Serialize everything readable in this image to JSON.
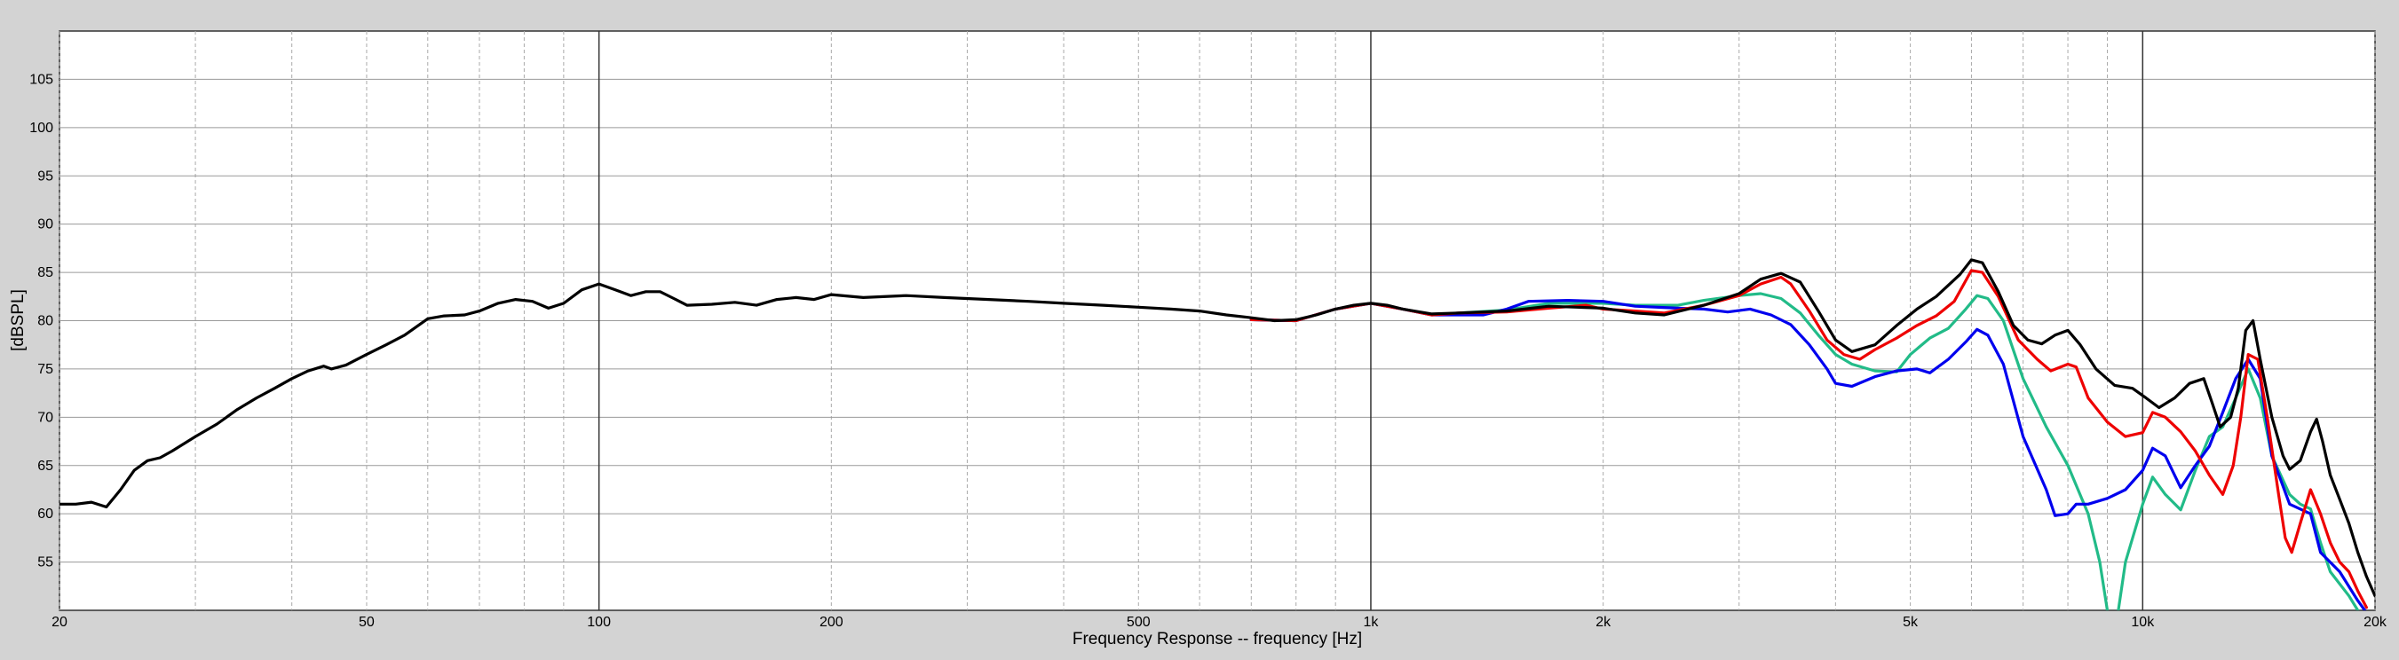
{
  "chart_data": {
    "type": "line",
    "title": "",
    "xlabel": "Frequency Response -- frequency [Hz]",
    "ylabel": "[dBSPL]",
    "x_scale": "log",
    "xlim": [
      20,
      20000
    ],
    "ylim": [
      50,
      110
    ],
    "grid": true,
    "legend": "none",
    "x_ticks": [
      {
        "value": 20,
        "label": "20"
      },
      {
        "value": 50,
        "label": "50"
      },
      {
        "value": 100,
        "label": "100"
      },
      {
        "value": 200,
        "label": "200"
      },
      {
        "value": 500,
        "label": "500"
      },
      {
        "value": 1000,
        "label": "1k"
      },
      {
        "value": 2000,
        "label": "2k"
      },
      {
        "value": 5000,
        "label": "5k"
      },
      {
        "value": 10000,
        "label": "10k"
      },
      {
        "value": 20000,
        "label": "20k"
      }
    ],
    "y_ticks": [
      {
        "value": 55,
        "label": "55"
      },
      {
        "value": 60,
        "label": "60"
      },
      {
        "value": 65,
        "label": "65"
      },
      {
        "value": 70,
        "label": "70"
      },
      {
        "value": 75,
        "label": "75"
      },
      {
        "value": 80,
        "label": "80"
      },
      {
        "value": 85,
        "label": "85"
      },
      {
        "value": 90,
        "label": "90"
      },
      {
        "value": 95,
        "label": "95"
      },
      {
        "value": 100,
        "label": "100"
      },
      {
        "value": 105,
        "label": "105"
      }
    ],
    "series": [
      {
        "color": "#22bb88",
        "points": [
          [
            700,
            80.1
          ],
          [
            800,
            80.0
          ],
          [
            900,
            81.2
          ],
          [
            1000,
            81.8
          ],
          [
            1100,
            81.2
          ],
          [
            1200,
            80.6
          ],
          [
            1300,
            80.8
          ],
          [
            1500,
            81.1
          ],
          [
            1700,
            81.8
          ],
          [
            2000,
            81.8
          ],
          [
            2200,
            81.6
          ],
          [
            2500,
            81.6
          ],
          [
            2700,
            82.1
          ],
          [
            3000,
            82.6
          ],
          [
            3200,
            82.8
          ],
          [
            3400,
            82.3
          ],
          [
            3600,
            80.8
          ],
          [
            3800,
            78.5
          ],
          [
            4000,
            76.5
          ],
          [
            4200,
            75.5
          ],
          [
            4500,
            74.8
          ],
          [
            4800,
            74.7
          ],
          [
            5000,
            76.5
          ],
          [
            5300,
            78.2
          ],
          [
            5600,
            79.2
          ],
          [
            5900,
            81.2
          ],
          [
            6100,
            82.6
          ],
          [
            6300,
            82.3
          ],
          [
            6600,
            80.0
          ],
          [
            7000,
            74.0
          ],
          [
            7500,
            69.0
          ],
          [
            8000,
            65.0
          ],
          [
            8500,
            60.0
          ],
          [
            8800,
            55.0
          ],
          [
            9000,
            50.0
          ]
        ]
      },
      {
        "color": "#22bb88",
        "points": [
          [
            9300,
            50.0
          ],
          [
            9500,
            55.0
          ],
          [
            10000,
            61.0
          ],
          [
            10300,
            63.8
          ],
          [
            10700,
            62.0
          ],
          [
            11200,
            60.4
          ],
          [
            11700,
            64.5
          ],
          [
            12200,
            68.0
          ],
          [
            12700,
            69.0
          ],
          [
            13200,
            72.0
          ],
          [
            13700,
            75.0
          ],
          [
            14200,
            72.0
          ],
          [
            14700,
            66.0
          ],
          [
            15500,
            62.0
          ],
          [
            16000,
            61.0
          ],
          [
            16500,
            60.5
          ],
          [
            17000,
            57.0
          ],
          [
            17500,
            54.0
          ],
          [
            18500,
            51.5
          ],
          [
            19000,
            50.0
          ]
        ]
      },
      {
        "color": "#0000ee",
        "points": [
          [
            700,
            80.1
          ],
          [
            800,
            80.0
          ],
          [
            900,
            81.2
          ],
          [
            1000,
            81.8
          ],
          [
            1100,
            81.2
          ],
          [
            1200,
            80.6
          ],
          [
            1300,
            80.6
          ],
          [
            1400,
            80.6
          ],
          [
            1500,
            81.2
          ],
          [
            1600,
            82.0
          ],
          [
            1800,
            82.1
          ],
          [
            2000,
            82.0
          ],
          [
            2200,
            81.5
          ],
          [
            2500,
            81.3
          ],
          [
            2700,
            81.2
          ],
          [
            2900,
            80.9
          ],
          [
            3100,
            81.2
          ],
          [
            3300,
            80.6
          ],
          [
            3500,
            79.6
          ],
          [
            3700,
            77.5
          ],
          [
            3900,
            75.0
          ],
          [
            4000,
            73.5
          ],
          [
            4200,
            73.2
          ],
          [
            4500,
            74.2
          ],
          [
            4800,
            74.8
          ],
          [
            5100,
            75.0
          ],
          [
            5300,
            74.6
          ],
          [
            5600,
            76.0
          ],
          [
            5900,
            77.8
          ],
          [
            6100,
            79.1
          ],
          [
            6300,
            78.5
          ],
          [
            6600,
            75.5
          ],
          [
            7000,
            68.0
          ],
          [
            7500,
            62.5
          ],
          [
            7700,
            59.8
          ],
          [
            8000,
            60.0
          ],
          [
            8200,
            61.0
          ],
          [
            8500,
            61.0
          ],
          [
            9000,
            61.6
          ],
          [
            9500,
            62.5
          ],
          [
            10000,
            64.5
          ],
          [
            10300,
            66.8
          ],
          [
            10700,
            66.0
          ],
          [
            11200,
            62.7
          ],
          [
            11700,
            65.0
          ],
          [
            12200,
            67.0
          ],
          [
            12700,
            70.5
          ],
          [
            13200,
            74.0
          ],
          [
            13700,
            76.0
          ],
          [
            14200,
            74.0
          ],
          [
            14700,
            66.0
          ],
          [
            15500,
            61.0
          ],
          [
            16500,
            60.0
          ],
          [
            17000,
            56.0
          ],
          [
            18000,
            54.0
          ],
          [
            19000,
            51.0
          ],
          [
            19400,
            50.0
          ]
        ]
      },
      {
        "color": "#ee0000",
        "points": [
          [
            700,
            80.1
          ],
          [
            800,
            80.0
          ],
          [
            900,
            81.2
          ],
          [
            1000,
            81.8
          ],
          [
            1100,
            81.2
          ],
          [
            1200,
            80.6
          ],
          [
            1300,
            80.8
          ],
          [
            1500,
            80.9
          ],
          [
            1700,
            81.3
          ],
          [
            1900,
            81.6
          ],
          [
            2000,
            81.2
          ],
          [
            2200,
            81.0
          ],
          [
            2400,
            80.8
          ],
          [
            2700,
            81.6
          ],
          [
            3000,
            82.6
          ],
          [
            3200,
            83.8
          ],
          [
            3400,
            84.5
          ],
          [
            3500,
            83.8
          ],
          [
            3700,
            81.0
          ],
          [
            3900,
            78.0
          ],
          [
            4100,
            76.5
          ],
          [
            4300,
            76.0
          ],
          [
            4500,
            77.0
          ],
          [
            4800,
            78.2
          ],
          [
            5100,
            79.5
          ],
          [
            5400,
            80.5
          ],
          [
            5700,
            82.0
          ],
          [
            6000,
            85.2
          ],
          [
            6200,
            85.0
          ],
          [
            6500,
            82.5
          ],
          [
            6900,
            78.0
          ],
          [
            7300,
            76.0
          ],
          [
            7600,
            74.8
          ],
          [
            8000,
            75.5
          ],
          [
            8200,
            75.2
          ],
          [
            8500,
            72.0
          ],
          [
            9000,
            69.5
          ],
          [
            9500,
            68.0
          ],
          [
            10000,
            68.4
          ],
          [
            10300,
            70.5
          ],
          [
            10700,
            70.0
          ],
          [
            11200,
            68.5
          ],
          [
            11700,
            66.5
          ],
          [
            12200,
            64.0
          ],
          [
            12700,
            62.0
          ],
          [
            13100,
            65.0
          ],
          [
            13400,
            70.0
          ],
          [
            13700,
            76.5
          ],
          [
            14100,
            76.0
          ],
          [
            14500,
            70.0
          ],
          [
            15000,
            62.0
          ],
          [
            15300,
            57.5
          ],
          [
            15600,
            56.0
          ],
          [
            16000,
            59.0
          ],
          [
            16500,
            62.5
          ],
          [
            17000,
            60.0
          ],
          [
            17500,
            57.0
          ],
          [
            18000,
            55.0
          ],
          [
            18500,
            54.0
          ],
          [
            19000,
            52.0
          ],
          [
            19500,
            50.3
          ]
        ]
      },
      {
        "color": "#000000",
        "points": [
          [
            20,
            61.0
          ],
          [
            21,
            61.0
          ],
          [
            22,
            61.2
          ],
          [
            23,
            60.7
          ],
          [
            24,
            62.5
          ],
          [
            25,
            64.5
          ],
          [
            26,
            65.5
          ],
          [
            27,
            65.8
          ],
          [
            28,
            66.5
          ],
          [
            30,
            68.0
          ],
          [
            32,
            69.3
          ],
          [
            34,
            70.8
          ],
          [
            36,
            72.0
          ],
          [
            38,
            73.0
          ],
          [
            40,
            74.0
          ],
          [
            42,
            74.8
          ],
          [
            44,
            75.3
          ],
          [
            45,
            75.0
          ],
          [
            47,
            75.4
          ],
          [
            50,
            76.5
          ],
          [
            53,
            77.5
          ],
          [
            56,
            78.5
          ],
          [
            60,
            80.2
          ],
          [
            63,
            80.5
          ],
          [
            67,
            80.6
          ],
          [
            70,
            81.0
          ],
          [
            74,
            81.8
          ],
          [
            78,
            82.2
          ],
          [
            82,
            82.0
          ],
          [
            86,
            81.3
          ],
          [
            90,
            81.8
          ],
          [
            95,
            83.2
          ],
          [
            100,
            83.8
          ],
          [
            105,
            83.2
          ],
          [
            110,
            82.6
          ],
          [
            115,
            83.0
          ],
          [
            120,
            83.0
          ],
          [
            125,
            82.3
          ],
          [
            130,
            81.6
          ],
          [
            140,
            81.7
          ],
          [
            150,
            81.9
          ],
          [
            160,
            81.6
          ],
          [
            170,
            82.2
          ],
          [
            180,
            82.4
          ],
          [
            190,
            82.2
          ],
          [
            200,
            82.7
          ],
          [
            220,
            82.4
          ],
          [
            250,
            82.6
          ],
          [
            280,
            82.4
          ],
          [
            320,
            82.2
          ],
          [
            360,
            82.0
          ],
          [
            400,
            81.8
          ],
          [
            450,
            81.6
          ],
          [
            500,
            81.4
          ],
          [
            550,
            81.2
          ],
          [
            600,
            81.0
          ],
          [
            650,
            80.6
          ],
          [
            700,
            80.3
          ],
          [
            750,
            80.0
          ],
          [
            800,
            80.1
          ],
          [
            850,
            80.6
          ],
          [
            900,
            81.2
          ],
          [
            950,
            81.6
          ],
          [
            1000,
            81.8
          ],
          [
            1050,
            81.6
          ],
          [
            1100,
            81.2
          ],
          [
            1200,
            80.7
          ],
          [
            1300,
            80.8
          ],
          [
            1500,
            81.0
          ],
          [
            1700,
            81.5
          ],
          [
            2000,
            81.3
          ],
          [
            2200,
            80.8
          ],
          [
            2400,
            80.6
          ],
          [
            2700,
            81.6
          ],
          [
            3000,
            82.8
          ],
          [
            3200,
            84.3
          ],
          [
            3400,
            84.9
          ],
          [
            3600,
            84.0
          ],
          [
            3800,
            81.0
          ],
          [
            4000,
            78.0
          ],
          [
            4200,
            76.8
          ],
          [
            4500,
            77.5
          ],
          [
            4800,
            79.5
          ],
          [
            5100,
            81.2
          ],
          [
            5400,
            82.5
          ],
          [
            5800,
            84.8
          ],
          [
            6000,
            86.3
          ],
          [
            6200,
            86.0
          ],
          [
            6500,
            83.0
          ],
          [
            6800,
            79.5
          ],
          [
            7100,
            78.0
          ],
          [
            7400,
            77.6
          ],
          [
            7700,
            78.5
          ],
          [
            8000,
            79.0
          ],
          [
            8300,
            77.5
          ],
          [
            8700,
            75.0
          ],
          [
            9200,
            73.3
          ],
          [
            9700,
            73.0
          ],
          [
            10100,
            72.0
          ],
          [
            10500,
            71.0
          ],
          [
            11000,
            72.0
          ],
          [
            11500,
            73.5
          ],
          [
            12000,
            74.0
          ],
          [
            12300,
            71.5
          ],
          [
            12600,
            69.0
          ],
          [
            13000,
            70.0
          ],
          [
            13300,
            73.0
          ],
          [
            13600,
            79.0
          ],
          [
            13900,
            80.0
          ],
          [
            14200,
            76.0
          ],
          [
            14700,
            70.0
          ],
          [
            15200,
            66.0
          ],
          [
            15500,
            64.6
          ],
          [
            16000,
            65.5
          ],
          [
            16500,
            68.5
          ],
          [
            16800,
            69.8
          ],
          [
            17100,
            67.5
          ],
          [
            17500,
            64.0
          ],
          [
            18000,
            61.5
          ],
          [
            18500,
            59.0
          ],
          [
            19000,
            56.0
          ],
          [
            19500,
            53.5
          ],
          [
            20000,
            51.5
          ]
        ]
      }
    ]
  }
}
